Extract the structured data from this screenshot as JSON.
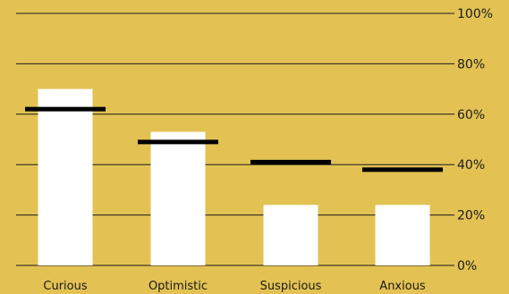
{
  "chart_data": {
    "type": "bar",
    "categories": [
      "Curious",
      "Optimistic",
      "Suspicious",
      "Anxious"
    ],
    "series": [
      {
        "values": [
          70,
          53,
          24,
          24
        ]
      },
      {
        "values": [
          62,
          49,
          41,
          38
        ]
      }
    ],
    "y_ticks": [
      "0%",
      "20%",
      "40%",
      "60%",
      "80%",
      "100%"
    ],
    "ylim": [
      0,
      100
    ],
    "grid": true,
    "colors": {
      "background": "#e3c253",
      "bar": "#ffffff",
      "marker": "#000000",
      "grid": "#1a1a1a",
      "text": "#1a1a1a"
    }
  }
}
